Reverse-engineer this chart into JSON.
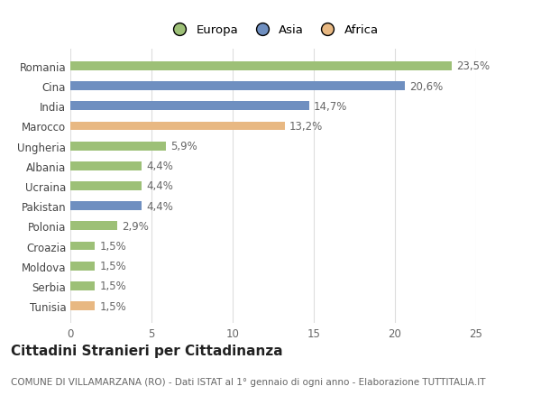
{
  "categories": [
    "Tunisia",
    "Serbia",
    "Moldova",
    "Croazia",
    "Polonia",
    "Pakistan",
    "Ucraina",
    "Albania",
    "Ungheria",
    "Marocco",
    "India",
    "Cina",
    "Romania"
  ],
  "values": [
    1.5,
    1.5,
    1.5,
    1.5,
    2.9,
    4.4,
    4.4,
    4.4,
    5.9,
    13.2,
    14.7,
    20.6,
    23.5
  ],
  "labels": [
    "1,5%",
    "1,5%",
    "1,5%",
    "1,5%",
    "2,9%",
    "4,4%",
    "4,4%",
    "4,4%",
    "5,9%",
    "13,2%",
    "14,7%",
    "20,6%",
    "23,5%"
  ],
  "colors": [
    "#e8b882",
    "#9dc077",
    "#9dc077",
    "#9dc077",
    "#9dc077",
    "#6f8fc0",
    "#9dc077",
    "#9dc077",
    "#9dc077",
    "#e8b882",
    "#6f8fc0",
    "#6f8fc0",
    "#9dc077"
  ],
  "continent_colors": {
    "Europa": "#9dc077",
    "Asia": "#6f8fc0",
    "Africa": "#e8b882"
  },
  "title": "Cittadini Stranieri per Cittadinanza",
  "subtitle": "COMUNE DI VILLAMARZANA (RO) - Dati ISTAT al 1° gennaio di ogni anno - Elaborazione TUTTITALIA.IT",
  "xlim": [
    0,
    25
  ],
  "xticks": [
    0,
    5,
    10,
    15,
    20,
    25
  ],
  "background_color": "#ffffff",
  "bar_height": 0.45,
  "label_fontsize": 8.5,
  "tick_fontsize": 8.5,
  "title_fontsize": 11,
  "subtitle_fontsize": 7.5,
  "legend_fontsize": 9.5
}
